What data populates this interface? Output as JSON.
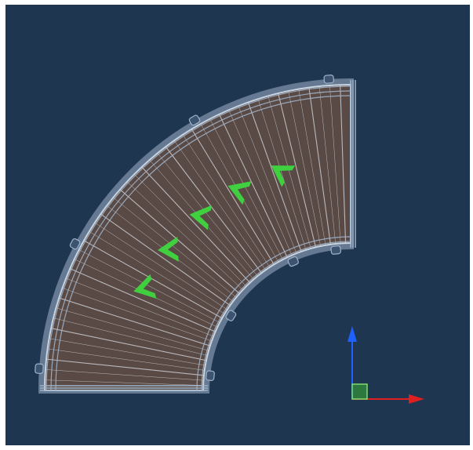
{
  "viewport": {
    "background": "#1f3651",
    "conveyor_frame_color": "#9fb3c9",
    "belt_color": "#5a4a45",
    "roller_line_color": "#d9dde4",
    "direction_arrow_color": "#3fcf3f",
    "direction_arrow_count": 5
  },
  "gizmo": {
    "x_axis_color": "#e02020",
    "y_axis_color": "#2060ff",
    "origin_square_color": "#2f8a3a"
  },
  "icons": [
    "conveyor-curve-model",
    "direction-arrow-icon",
    "axis-gizmo-icon"
  ]
}
